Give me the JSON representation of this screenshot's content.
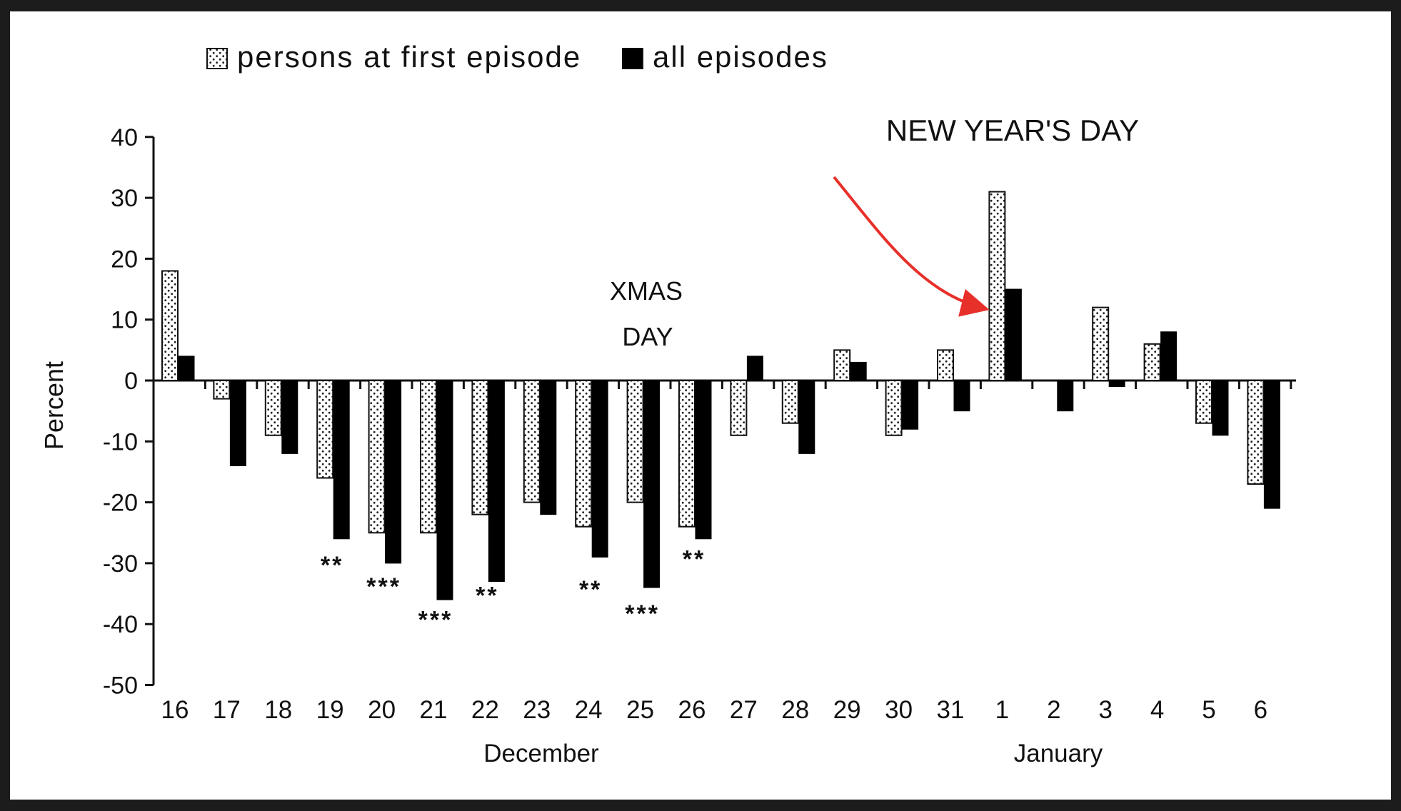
{
  "chart_data": {
    "type": "bar",
    "legend": {
      "placement": "top-left",
      "entries": [
        {
          "label": "persons at first episode",
          "style": "dotted"
        },
        {
          "label": "all episodes",
          "style": "solid"
        }
      ]
    },
    "ylabel": "Percent",
    "ylim": [
      -50,
      40
    ],
    "yticks": [
      40,
      30,
      20,
      10,
      0,
      -10,
      -20,
      -30,
      -40,
      -50
    ],
    "categories": [
      "16",
      "17",
      "18",
      "19",
      "20",
      "21",
      "22",
      "23",
      "24",
      "25",
      "26",
      "27",
      "28",
      "29",
      "30",
      "31",
      "1",
      "2",
      "3",
      "4",
      "5",
      "6"
    ],
    "month_labels": [
      {
        "label": "December",
        "center_after_index": 7.5
      },
      {
        "label": "January",
        "center_after_index": 17.5
      }
    ],
    "series": [
      {
        "name": "persons at first episode",
        "style": "dotted",
        "values": [
          18,
          -3,
          -9,
          -16,
          -25,
          -25,
          -22,
          -20,
          -24,
          -20,
          -24,
          -9,
          -7,
          5,
          -9,
          5,
          31,
          0,
          12,
          6,
          -7,
          -17
        ]
      },
      {
        "name": "all episodes",
        "style": "solid",
        "values": [
          4,
          -14,
          -12,
          -26,
          -30,
          -36,
          -33,
          -22,
          -29,
          -34,
          -26,
          4,
          -12,
          3,
          -8,
          -5,
          15,
          -5,
          -1,
          8,
          -9,
          -21
        ]
      }
    ],
    "significance": [
      {
        "category": "19",
        "label": "**",
        "y": -30
      },
      {
        "category": "20",
        "label": "***",
        "y": -33.5
      },
      {
        "category": "21",
        "label": "***",
        "y": -39
      },
      {
        "category": "22",
        "label": "**",
        "y": -35
      },
      {
        "category": "24",
        "label": "**",
        "y": -34
      },
      {
        "category": "25",
        "label": "***",
        "y": -38
      },
      {
        "category": "26",
        "label": "**",
        "y": -29
      }
    ],
    "annotations": [
      {
        "id": "xmas",
        "lines": [
          "XMAS",
          "DAY"
        ]
      },
      {
        "id": "newyear",
        "lines": [
          "NEW YEAR'S DAY"
        ],
        "arrow_color": "#e8302a"
      }
    ],
    "grid": false
  }
}
